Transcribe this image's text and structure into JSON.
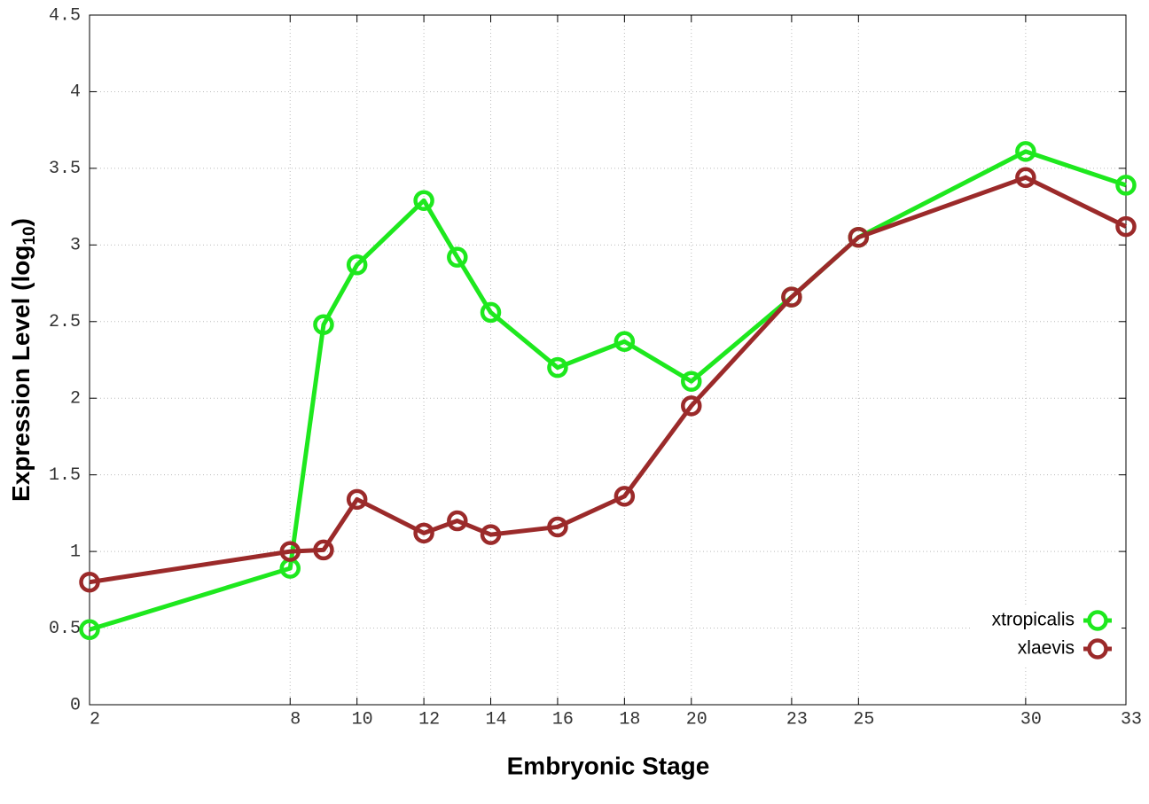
{
  "chart_data": {
    "type": "line",
    "x_label": "Embryonic Stage",
    "y_label": "Expression Level (log10)",
    "x": [
      2,
      8,
      9,
      10,
      12,
      13,
      14,
      16,
      18,
      20,
      23,
      25,
      30,
      33
    ],
    "series": [
      {
        "name": "xtropicalis",
        "color": "#1ee81e",
        "values": [
          0.49,
          0.89,
          2.48,
          2.87,
          3.29,
          2.92,
          2.56,
          2.2,
          2.37,
          2.11,
          2.66,
          3.05,
          3.61,
          3.39
        ]
      },
      {
        "name": "xlaevis",
        "color": "#9b2a2a",
        "values": [
          0.8,
          1.0,
          1.01,
          1.34,
          1.12,
          1.2,
          1.11,
          1.16,
          1.36,
          1.95,
          2.66,
          3.05,
          3.44,
          3.12
        ]
      }
    ],
    "xlim": [
      2,
      33
    ],
    "xticks": [
      2,
      8,
      10,
      12,
      14,
      16,
      18,
      20,
      23,
      25,
      30,
      33
    ],
    "ylim": [
      0,
      4.5
    ],
    "yticks": [
      0,
      0.5,
      1,
      1.5,
      2,
      2.5,
      3,
      3.5,
      4,
      4.5
    ],
    "grid": true,
    "legend": "lower right"
  }
}
